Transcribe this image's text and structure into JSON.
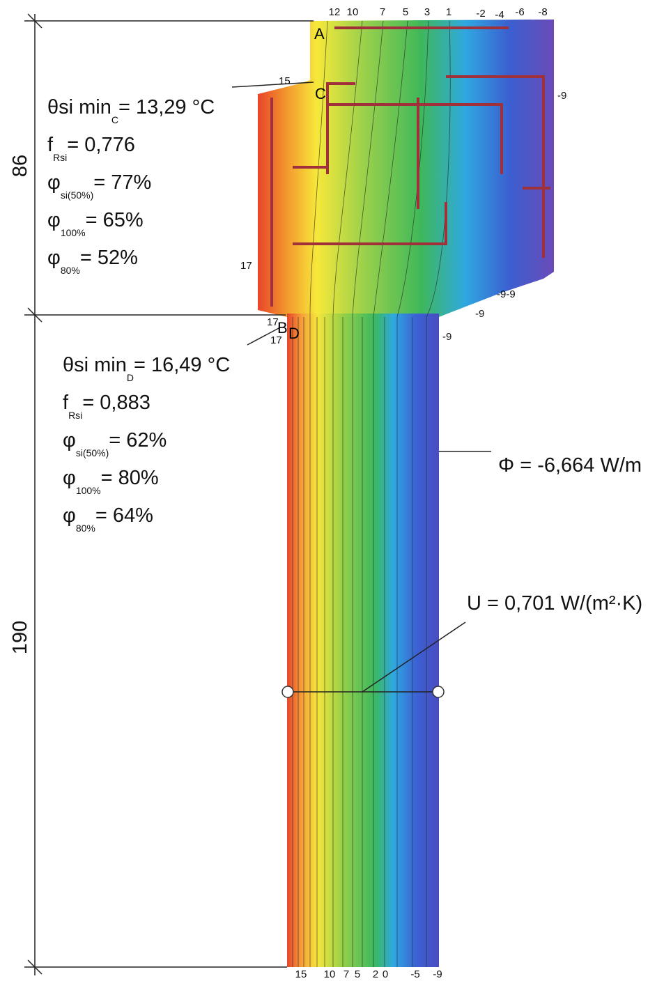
{
  "dimensions": [
    "86",
    "190"
  ],
  "isotherm_labels_top": [
    "12",
    "10",
    "7",
    "5",
    "3",
    "1",
    "-2",
    "-4",
    "-6",
    "-8"
  ],
  "isotherm_labels_right": [
    "-9",
    "-9-9",
    "-9",
    "-9"
  ],
  "isotherm_labels_left": [
    "15",
    "17",
    "17",
    "17"
  ],
  "isotherm_labels_bottom": [
    "15",
    "10",
    "7",
    "5",
    "2",
    "0",
    "-5",
    "-9"
  ],
  "points": [
    "A",
    "C",
    "B",
    "D"
  ],
  "block_c": [
    [
      "θsi min",
      "C",
      "= 13,29 °C"
    ],
    [
      "f",
      "Rsi",
      "= 0,776"
    ],
    [
      "φ",
      "si(50%)",
      "= 77%"
    ],
    [
      "φ",
      "100%",
      "= 65%"
    ],
    [
      "φ",
      "80%",
      "= 52%"
    ]
  ],
  "block_d": [
    [
      "θsi min",
      "D",
      "= 16,49 °C"
    ],
    [
      "f",
      "Rsi",
      "= 0,883"
    ],
    [
      "φ",
      "si(50%)",
      "= 62%"
    ],
    [
      "φ",
      "100%",
      "= 80%"
    ],
    [
      "φ",
      "80%",
      "= 64%"
    ]
  ],
  "flux": "Φ = -6,664 W/m",
  "u_value": "U = 0,701 W/(m²·K)"
}
